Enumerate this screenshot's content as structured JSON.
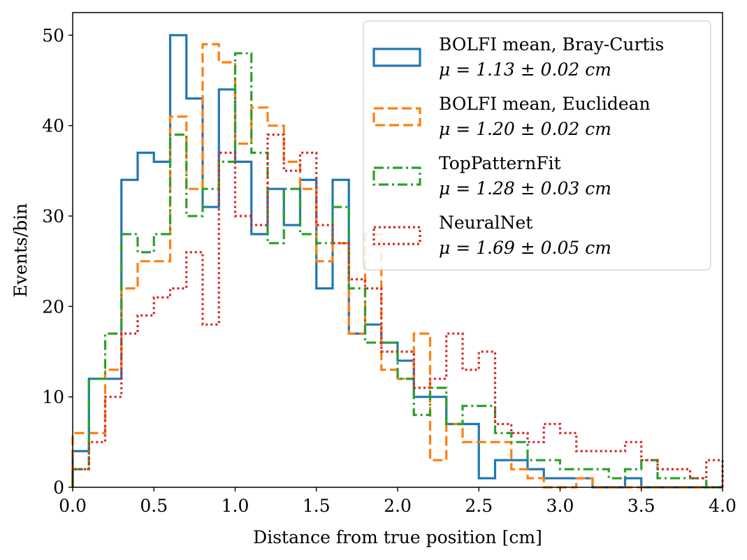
{
  "chart_data": {
    "type": "step-histogram",
    "xlabel": "Distance from true position [cm]",
    "ylabel": "Events/bin",
    "xlim": [
      0,
      4
    ],
    "ylim": [
      0,
      52.5
    ],
    "xticks": [
      0.0,
      0.5,
      1.0,
      1.5,
      2.0,
      2.5,
      3.0,
      3.5,
      4.0
    ],
    "xtick_labels": [
      "0.0",
      "0.5",
      "1.0",
      "1.5",
      "2.0",
      "2.5",
      "3.0",
      "3.5",
      "4.0"
    ],
    "yticks": [
      0,
      10,
      20,
      30,
      40,
      50
    ],
    "ytick_labels": [
      "0",
      "10",
      "20",
      "30",
      "40",
      "50"
    ],
    "grid": false,
    "legend_position": "top-right",
    "bin_edges": [
      0.0,
      0.1,
      0.2,
      0.3,
      0.4,
      0.5,
      0.6,
      0.7,
      0.8,
      0.9,
      1.0,
      1.1,
      1.2,
      1.3,
      1.4,
      1.5,
      1.6,
      1.7,
      1.8,
      1.9,
      2.0,
      2.1,
      2.2,
      2.3,
      2.4,
      2.5,
      2.6,
      2.7,
      2.8,
      2.9,
      3.0,
      3.1,
      3.2,
      3.3,
      3.4,
      3.5,
      3.6,
      3.7,
      3.8,
      3.9,
      4.0
    ],
    "series": [
      {
        "name": "BOLFI mean, Bray-Curtis",
        "stat_label": "μ = 1.13 ± 0.02 cm",
        "color": "#1f77b4",
        "style": "solid",
        "values": [
          4,
          12,
          12,
          34,
          37,
          36,
          50,
          43,
          31,
          44,
          36,
          28,
          33,
          29,
          34,
          22,
          34,
          17,
          18,
          16,
          14,
          10,
          10,
          7,
          7,
          1,
          3,
          3,
          2,
          1,
          1,
          1,
          0,
          0,
          1,
          0,
          0,
          0,
          0,
          0
        ]
      },
      {
        "name": "BOLFI mean, Euclidean",
        "stat_label": "μ = 1.20 ± 0.02 cm",
        "color": "#ff7f0e",
        "style": "dashed",
        "values": [
          6,
          6,
          13,
          22,
          25,
          25,
          41,
          33,
          49,
          47,
          38,
          42,
          40,
          36,
          33,
          25,
          27,
          17,
          28,
          13,
          12,
          17,
          3,
          7,
          5,
          5,
          5,
          2,
          1,
          0,
          0,
          1,
          0,
          0,
          0,
          0,
          0,
          0,
          0,
          0
        ]
      },
      {
        "name": "TopPatternFit",
        "stat_label": "μ = 1.28 ± 0.03 cm",
        "color": "#2ca02c",
        "style": "dashdot",
        "values": [
          2,
          12,
          17,
          28,
          26,
          28,
          39,
          30,
          33,
          36,
          48,
          37,
          27,
          33,
          28,
          27,
          31,
          22,
          16,
          16,
          12,
          8,
          11,
          7,
          9,
          9,
          6,
          5,
          3,
          3,
          2,
          2,
          2,
          1,
          2,
          3,
          1,
          1,
          1,
          0
        ]
      },
      {
        "name": "NeuralNet",
        "stat_label": "μ = 1.69 ± 0.05 cm",
        "color": "#d62728",
        "style": "dotted",
        "values": [
          2,
          5,
          10,
          17,
          19,
          21,
          22,
          26,
          18,
          37,
          30,
          29,
          39,
          35,
          37,
          29,
          27,
          23,
          22,
          15,
          15,
          11,
          12,
          17,
          13,
          15,
          7,
          6,
          5,
          7,
          6,
          4,
          4,
          4,
          5,
          3,
          2,
          2,
          1,
          3
        ]
      }
    ]
  }
}
